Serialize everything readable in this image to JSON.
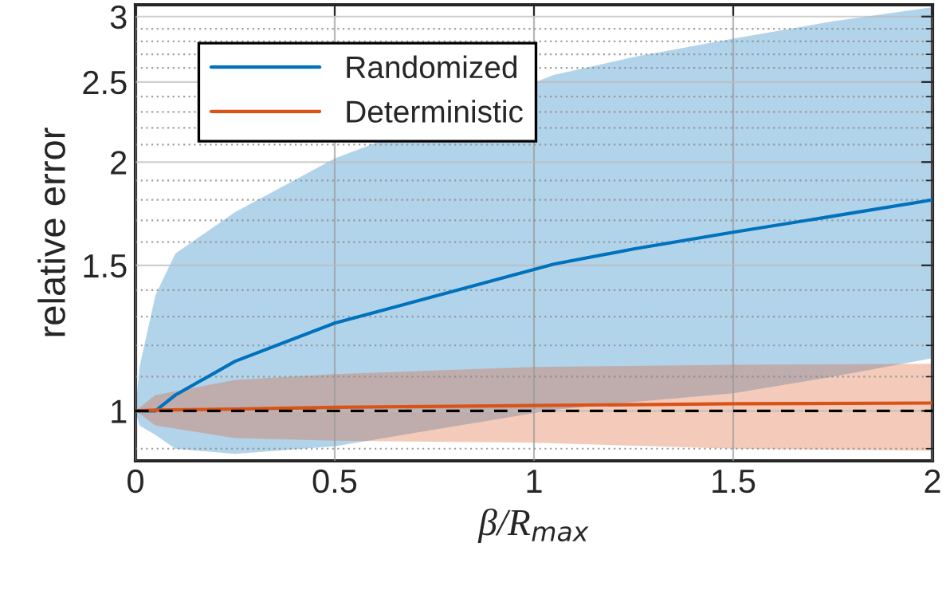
{
  "chart_data": {
    "type": "line",
    "xlabel": "β/R$_{max}$",
    "ylabel": "relative error",
    "series": [
      {
        "name": "Randomized",
        "color": "#0072bd",
        "x": [
          0,
          0.01,
          0.05,
          0.1,
          0.25,
          0.5,
          1.05,
          1.25,
          1.5,
          1.75,
          2
        ],
        "values": [
          1,
          1.0,
          1.0,
          1.045,
          1.148,
          1.277,
          1.505,
          1.57,
          1.645,
          1.72,
          1.8
        ],
        "lower": [
          1,
          0.96,
          0.935,
          0.9,
          0.887,
          0.906,
          1.003,
          1.025,
          1.05,
          1.1,
          1.158
        ],
        "upper": [
          1,
          1.13,
          1.38,
          1.55,
          1.74,
          2.02,
          2.55,
          2.68,
          2.82,
          2.96,
          3.08
        ]
      },
      {
        "name": "Deterministic",
        "color": "#d95319",
        "x": [
          0,
          0.05,
          0.25,
          0.5,
          1,
          1.5,
          2
        ],
        "values": [
          1,
          1.002,
          1.005,
          1.01,
          1.015,
          1.02,
          1.022
        ],
        "lower": [
          1,
          0.96,
          0.927,
          0.92,
          0.915,
          0.9,
          0.895
        ],
        "upper": [
          1,
          1.045,
          1.09,
          1.108,
          1.13,
          1.137,
          1.14
        ]
      }
    ],
    "ref_lines": [
      {
        "axis": "y",
        "value": 1,
        "color": "#000000",
        "line_style": "dashed"
      }
    ],
    "log": "y",
    "xlim": [
      0,
      2
    ],
    "xticks": [
      0,
      0.5,
      1,
      1.5,
      2
    ],
    "ylim": [
      0.87,
      3.1
    ],
    "yticks": [
      1,
      1.5,
      2,
      2.5,
      3
    ],
    "grid": true,
    "legend": "top left"
  }
}
